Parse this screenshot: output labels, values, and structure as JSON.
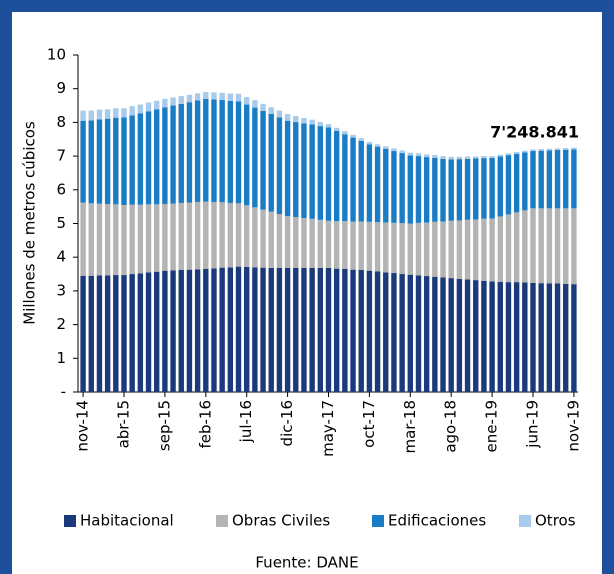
{
  "chart_data": {
    "type": "stacked_bar",
    "y_label": "Millones de metros cúbicos",
    "annotation": "7'248.841",
    "source": "Fuente: DANE",
    "legend": "bottom",
    "grid": false,
    "categories": [
      "nov-14",
      null,
      null,
      null,
      null,
      "abr-15",
      null,
      null,
      null,
      null,
      "sep-15",
      null,
      null,
      null,
      null,
      "feb-16",
      null,
      null,
      null,
      null,
      "jul-16",
      null,
      null,
      null,
      null,
      "dic-16",
      null,
      null,
      null,
      null,
      "may-17",
      null,
      null,
      null,
      null,
      "oct-17",
      null,
      null,
      null,
      null,
      "mar-18",
      null,
      null,
      null,
      null,
      "ago-18",
      null,
      null,
      null,
      null,
      "ene-19",
      null,
      null,
      null,
      null,
      "jun-19",
      null,
      null,
      null,
      null,
      "nov-19"
    ],
    "ylim": [
      0,
      10
    ],
    "yticks": [
      {
        "value": 0,
        "label": "-"
      },
      1,
      2,
      3,
      4,
      5,
      6,
      7,
      8,
      9,
      10
    ],
    "series": [
      {
        "name": "Habitacional",
        "color": "#1b3a7c",
        "values": [
          3.45,
          3.45,
          3.46,
          3.46,
          3.47,
          3.47,
          3.5,
          3.52,
          3.55,
          3.57,
          3.6,
          3.61,
          3.62,
          3.63,
          3.64,
          3.65,
          3.67,
          3.69,
          3.7,
          3.72,
          3.71,
          3.7,
          3.69,
          3.68,
          3.68,
          3.68,
          3.68,
          3.68,
          3.68,
          3.68,
          3.68,
          3.66,
          3.65,
          3.63,
          3.62,
          3.6,
          3.58,
          3.55,
          3.53,
          3.5,
          3.48,
          3.46,
          3.44,
          3.42,
          3.4,
          3.38,
          3.36,
          3.34,
          3.32,
          3.3,
          3.28,
          3.27,
          3.26,
          3.26,
          3.25,
          3.24,
          3.23,
          3.22,
          3.22,
          3.21,
          3.2
        ]
      },
      {
        "name": "Obras Civiles",
        "color": "#b4b4b4",
        "values": [
          2.17,
          2.15,
          2.13,
          2.12,
          2.1,
          2.08,
          2.06,
          2.04,
          2.02,
          2.0,
          1.98,
          1.98,
          1.99,
          1.99,
          2.0,
          2.0,
          1.97,
          1.94,
          1.91,
          1.88,
          1.83,
          1.78,
          1.72,
          1.67,
          1.6,
          1.54,
          1.51,
          1.48,
          1.46,
          1.43,
          1.4,
          1.41,
          1.42,
          1.43,
          1.44,
          1.45,
          1.46,
          1.48,
          1.49,
          1.51,
          1.52,
          1.56,
          1.59,
          1.63,
          1.66,
          1.7,
          1.73,
          1.77,
          1.8,
          1.84,
          1.87,
          1.94,
          2.01,
          2.07,
          2.14,
          2.21,
          2.22,
          2.23,
          2.23,
          2.24,
          2.25
        ]
      },
      {
        "name": "Edificaciones",
        "color": "#1b7cc6",
        "values": [
          2.43,
          2.46,
          2.5,
          2.53,
          2.57,
          2.6,
          2.65,
          2.71,
          2.76,
          2.82,
          2.87,
          2.91,
          2.94,
          2.98,
          3.01,
          3.05,
          3.04,
          3.04,
          3.03,
          3.02,
          2.99,
          2.96,
          2.93,
          2.9,
          2.87,
          2.83,
          2.82,
          2.81,
          2.8,
          2.78,
          2.77,
          2.68,
          2.58,
          2.49,
          2.39,
          2.3,
          2.24,
          2.19,
          2.13,
          2.08,
          2.02,
          1.98,
          1.94,
          1.9,
          1.86,
          1.82,
          1.82,
          1.81,
          1.81,
          1.8,
          1.8,
          1.78,
          1.76,
          1.74,
          1.72,
          1.7,
          1.71,
          1.72,
          1.73,
          1.74,
          1.75
        ]
      },
      {
        "name": "Otros",
        "color": "#a8cbeb",
        "values": [
          0.3,
          0.29,
          0.29,
          0.28,
          0.28,
          0.27,
          0.27,
          0.26,
          0.26,
          0.25,
          0.25,
          0.24,
          0.23,
          0.22,
          0.21,
          0.2,
          0.21,
          0.21,
          0.22,
          0.23,
          0.22,
          0.22,
          0.21,
          0.2,
          0.2,
          0.2,
          0.18,
          0.16,
          0.14,
          0.12,
          0.1,
          0.09,
          0.09,
          0.08,
          0.08,
          0.07,
          0.07,
          0.07,
          0.08,
          0.08,
          0.08,
          0.08,
          0.08,
          0.08,
          0.08,
          0.08,
          0.07,
          0.07,
          0.06,
          0.06,
          0.05,
          0.05,
          0.05,
          0.05,
          0.05,
          0.05,
          0.05,
          0.05,
          0.05,
          0.05,
          0.05
        ]
      }
    ]
  }
}
